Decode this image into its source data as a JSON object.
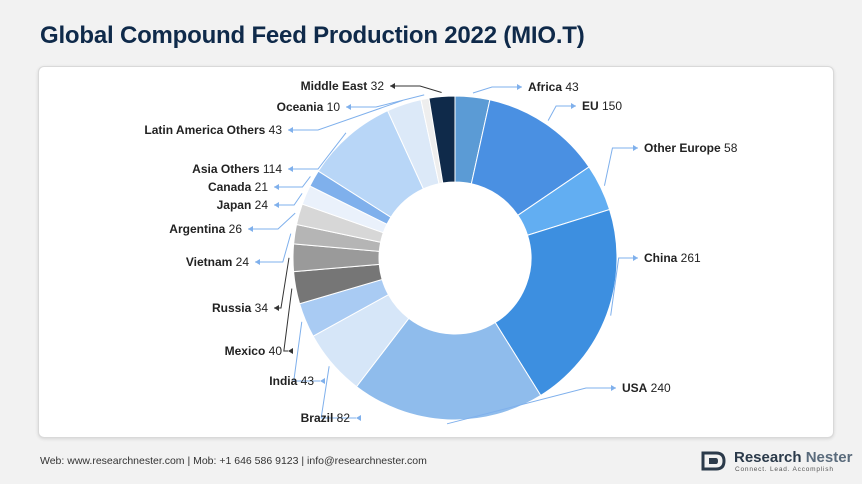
{
  "header": {
    "title": "Global Compound Feed Production 2022 (MIO.T)"
  },
  "footer": {
    "contact": "Web: www.researchnester.com  | Mob: +1 646 586 9123 | info@researchnester.com"
  },
  "brand": {
    "name_main": "Research",
    "name_accent": "Nester",
    "tagline": "Connect. Lead. Accomplish"
  },
  "chart_data": {
    "type": "pie",
    "variant": "donut",
    "title": "Global Compound Feed Production 2022 (MIO.T)",
    "slices": [
      {
        "label": "Africa",
        "value": 43,
        "color": "#5b9bd5"
      },
      {
        "label": "EU",
        "value": 150,
        "color": "#4a90e2"
      },
      {
        "label": "Other Europe",
        "value": 58,
        "color": "#62aef2"
      },
      {
        "label": "China",
        "value": 261,
        "color": "#3d8fe0"
      },
      {
        "label": "USA",
        "value": 240,
        "color": "#8fbcec"
      },
      {
        "label": "Brazil",
        "value": 82,
        "color": "#d6e6f8"
      },
      {
        "label": "India",
        "value": 43,
        "color": "#a9cbf3"
      },
      {
        "label": "Mexico",
        "value": 40,
        "color": "#767676"
      },
      {
        "label": "Russia",
        "value": 34,
        "color": "#9a9a9a"
      },
      {
        "label": "Vietnam",
        "value": 24,
        "color": "#b5b5b5"
      },
      {
        "label": "Argentina",
        "value": 26,
        "color": "#d7d7d7"
      },
      {
        "label": "Japan",
        "value": 24,
        "color": "#eaf1fb"
      },
      {
        "label": "Canada",
        "value": 21,
        "color": "#7fb0ec"
      },
      {
        "label": "Asia Others",
        "value": 114,
        "color": "#b8d6f7"
      },
      {
        "label": "Latin America Others",
        "value": 43,
        "color": "#dce9f8"
      },
      {
        "label": "Oceania",
        "value": 10,
        "color": "#eeeeee"
      },
      {
        "label": "Middle East",
        "value": 32,
        "color": "#0f2a4a"
      }
    ]
  }
}
